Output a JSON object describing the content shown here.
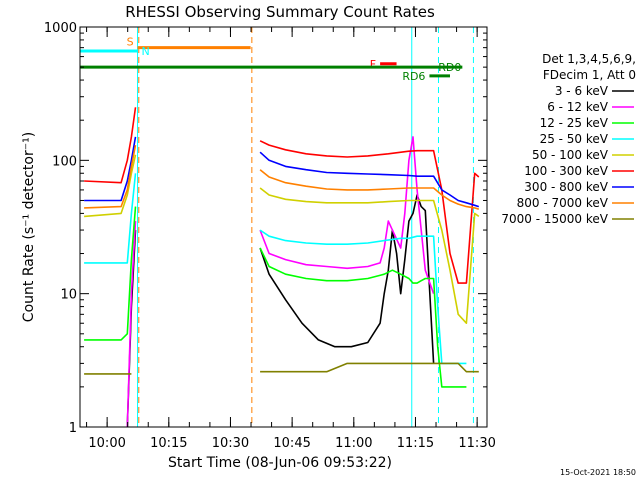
{
  "chart_data": {
    "type": "line",
    "title": "RHESSI Observing Summary Count Rates",
    "xlabel": "Start Time (08-Jun-06 09:53:22)",
    "ylabel": "Count Rate (s⁻¹ detector⁻¹)",
    "y_scale": "log",
    "ylim": [
      1,
      1000
    ],
    "xlim_minutes_after_start": [
      0,
      99
    ],
    "x_ticks": [
      {
        "label": "10:00",
        "minute": 6.6
      },
      {
        "label": "10:15",
        "minute": 21.6
      },
      {
        "label": "10:30",
        "minute": 36.6
      },
      {
        "label": "10:45",
        "minute": 51.6
      },
      {
        "label": "11:00",
        "minute": 66.6
      },
      {
        "label": "11:15",
        "minute": 81.6
      },
      {
        "label": "11:30",
        "minute": 96.6
      }
    ],
    "y_ticks": [
      {
        "label": "1",
        "value": 1
      },
      {
        "label": "10",
        "value": 10
      },
      {
        "label": "100",
        "value": 100
      },
      {
        "label": "1000",
        "value": 1000
      }
    ],
    "legend": {
      "placement": "right",
      "header": [
        "Det 1,3,4,5,6,9,",
        "FDecim 1, Att 0"
      ]
    },
    "series": [
      {
        "name": "3 - 6 keV",
        "color": "#000000",
        "x": [
          0,
          10,
          11.5,
          12.5,
          13.5,
          17,
          19,
          25,
          43.5,
          43.8,
          46,
          50,
          54,
          58,
          62,
          66,
          70,
          73,
          74,
          75,
          76,
          77,
          78,
          79,
          80,
          81,
          82,
          83,
          84,
          86,
          87
        ],
        "y": [
          null,
          null,
          1,
          8,
          30,
          null,
          null,
          null,
          null,
          22,
          14,
          9,
          6,
          4.5,
          4,
          4,
          4.3,
          6,
          10,
          15,
          30,
          20,
          10,
          18,
          35,
          40,
          55,
          45,
          42,
          3,
          null
        ]
      },
      {
        "name": "6 - 12 keV",
        "color": "#ff00ff",
        "x": [
          0,
          10,
          11.5,
          12.5,
          13.5,
          17,
          25,
          43.5,
          43.8,
          46,
          50,
          55,
          60,
          65,
          70,
          73,
          74,
          75,
          76,
          78,
          79,
          80,
          81,
          82,
          83,
          84,
          86,
          87
        ],
        "y": [
          null,
          null,
          1,
          10,
          35,
          null,
          null,
          null,
          30,
          20,
          18,
          16.5,
          16,
          15.5,
          16,
          17,
          22,
          35,
          30,
          22,
          40,
          100,
          150,
          60,
          30,
          15,
          10,
          null
        ]
      },
      {
        "name": "12 - 25 keV",
        "color": "#00ff00",
        "x": [
          0,
          1,
          10,
          11.5,
          12.5,
          13.5,
          17,
          25,
          43.5,
          43.8,
          46,
          50,
          55,
          60,
          65,
          70,
          74,
          76,
          78,
          80,
          81,
          82,
          83,
          84,
          86,
          87,
          88,
          89,
          90,
          91,
          92,
          93,
          94
        ],
        "y": [
          null,
          4.5,
          4.5,
          5,
          18,
          45,
          null,
          null,
          null,
          22,
          16,
          14,
          13,
          12.5,
          12.5,
          13,
          14,
          15,
          14,
          13,
          12,
          12,
          12.5,
          13,
          13,
          4,
          2,
          2,
          2,
          2,
          2,
          2,
          2
        ]
      },
      {
        "name": "25 - 50 keV",
        "color": "#00ffff",
        "x": [
          0,
          1,
          10,
          11.5,
          12.5,
          13.5,
          17,
          25,
          43.5,
          43.8,
          46,
          50,
          55,
          60,
          65,
          70,
          74,
          78,
          80,
          82,
          84,
          86,
          87,
          88,
          90,
          92,
          94
        ],
        "y": [
          null,
          17,
          17,
          17,
          40,
          80,
          null,
          null,
          null,
          30,
          27,
          25,
          24,
          23.5,
          23.5,
          24,
          25,
          26,
          26,
          27,
          27,
          27,
          8,
          3,
          3,
          3,
          3
        ]
      },
      {
        "name": "50 - 100 keV",
        "color": "#d0d000",
        "x": [
          0,
          1,
          10,
          11.5,
          12.5,
          13.5,
          17,
          25,
          43.5,
          43.8,
          46,
          50,
          55,
          60,
          65,
          70,
          75,
          80,
          82,
          84,
          86,
          88,
          90,
          92,
          94,
          96,
          97
        ],
        "y": [
          null,
          38,
          40,
          55,
          80,
          110,
          null,
          null,
          null,
          62,
          55,
          51,
          49,
          48,
          48,
          48,
          49,
          50,
          50,
          50,
          50,
          30,
          15,
          7,
          6,
          40,
          38
        ]
      },
      {
        "name": "100 - 300 keV",
        "color": "#ff0000",
        "x": [
          0,
          1,
          10,
          11.5,
          12.5,
          13.5,
          17,
          25,
          43.5,
          43.8,
          46,
          50,
          55,
          60,
          65,
          70,
          75,
          80,
          82,
          84,
          86,
          88,
          90,
          92,
          94,
          96,
          97
        ],
        "y": [
          null,
          70,
          68,
          100,
          150,
          250,
          null,
          null,
          null,
          140,
          130,
          120,
          112,
          108,
          106,
          108,
          112,
          117,
          118,
          118,
          118,
          60,
          20,
          12,
          12,
          80,
          75
        ]
      },
      {
        "name": "300 - 800 keV",
        "color": "#0000ff",
        "x": [
          0,
          1,
          10,
          11.5,
          12.5,
          13.5,
          17,
          25,
          43.5,
          43.8,
          46,
          50,
          55,
          60,
          65,
          70,
          75,
          80,
          82,
          84,
          86,
          88,
          90,
          92,
          94,
          96,
          97
        ],
        "y": [
          null,
          50,
          50,
          70,
          100,
          150,
          null,
          null,
          null,
          115,
          100,
          90,
          85,
          81,
          80,
          79,
          78,
          77,
          76,
          76,
          76,
          60,
          55,
          50,
          48,
          46,
          45
        ]
      },
      {
        "name": "800 - 7000 keV",
        "color": "#ff8000",
        "x": [
          0,
          1,
          10,
          11.5,
          12.5,
          13.5,
          17,
          25,
          43.5,
          43.8,
          46,
          50,
          55,
          60,
          65,
          70,
          75,
          80,
          82,
          84,
          86,
          88,
          90,
          92,
          94,
          96,
          97
        ],
        "y": [
          null,
          44,
          45,
          60,
          90,
          130,
          null,
          null,
          null,
          85,
          75,
          68,
          64,
          61,
          60,
          60,
          61,
          62,
          62,
          62,
          62,
          55,
          50,
          47,
          45,
          44,
          43
        ]
      },
      {
        "name": "7000 - 15000 keV",
        "color": "#808000",
        "x": [
          0,
          1,
          10,
          11.5,
          12.5,
          14,
          25,
          43.5,
          43.8,
          46,
          50,
          55,
          60,
          65,
          70,
          75,
          80,
          82,
          84,
          86,
          88,
          90,
          92,
          94,
          96,
          97
        ],
        "y": [
          null,
          2.5,
          2.5,
          2.5,
          2.5,
          null,
          null,
          null,
          2.6,
          2.6,
          2.6,
          2.6,
          2.6,
          3,
          3,
          3,
          3,
          3,
          3,
          3,
          3,
          3,
          3,
          2.6,
          2.6,
          2.6
        ]
      }
    ],
    "annotations": [
      {
        "label": "S",
        "color": "#ff8000",
        "bar_from": 14,
        "bar_to": 41.5,
        "y": 700
      },
      {
        "label": "N",
        "color": "#00ffff",
        "bar_from": 0,
        "bar_to": 14,
        "y": 660
      },
      {
        "label": "F",
        "color": "#ff0000",
        "bar_from": 73,
        "bar_to": 77,
        "y": 530
      },
      {
        "label": "RD6",
        "color": "#008000",
        "bar_from": 85,
        "bar_to": 90,
        "y": 430
      },
      {
        "label": "RD0",
        "color": "#008000",
        "bar_from": 0,
        "bar_to": 93,
        "y": 500
      }
    ],
    "vertical_markers": [
      {
        "minute": 14,
        "color": "#00ffff",
        "style": "solid"
      },
      {
        "minute": 14.3,
        "color": "#ff8000",
        "style": "dashed"
      },
      {
        "minute": 41.8,
        "color": "#ff8000",
        "style": "dashed"
      },
      {
        "minute": 80.7,
        "color": "#00ffff",
        "style": "solid"
      },
      {
        "minute": 87.2,
        "color": "#00ffff",
        "style": "dashed"
      },
      {
        "minute": 95.7,
        "color": "#00ffff",
        "style": "dashed"
      }
    ]
  },
  "footer": {
    "timestamp": "15-Oct-2021 18:50"
  }
}
